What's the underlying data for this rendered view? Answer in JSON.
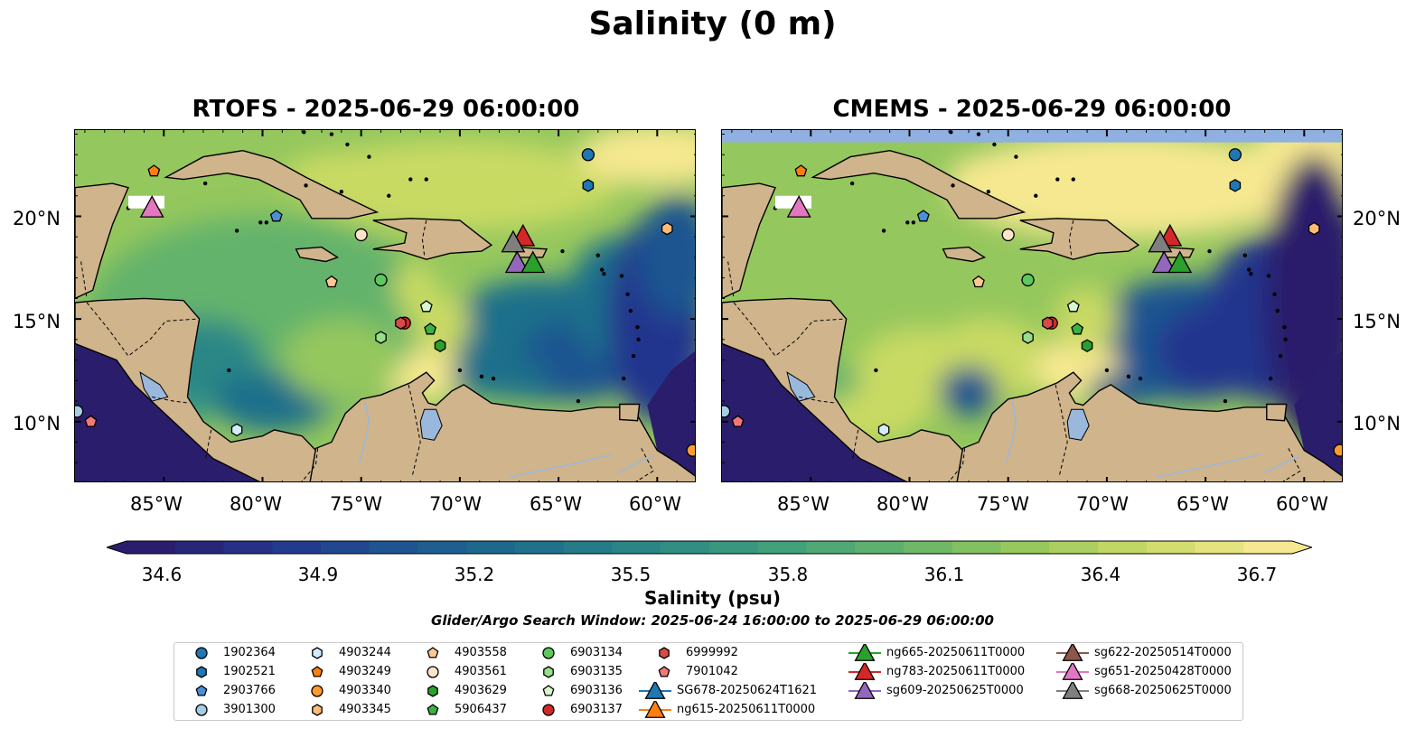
{
  "figure": {
    "suptitle": "Salinity (0 m)",
    "window_text": "Glider/Argo Search Window: 2025-06-24 16:00:00 to 2025-06-29 06:00:00"
  },
  "panels": [
    {
      "title": "RTOFS - 2025-06-29 06:00:00",
      "model": "RTOFS"
    },
    {
      "title": "CMEMS - 2025-06-29 06:00:00",
      "model": "CMEMS"
    }
  ],
  "axes": {
    "lon_labels": [
      "85°W",
      "80°W",
      "75°W",
      "70°W",
      "65°W",
      "60°W"
    ],
    "lat_labels": [
      "20°N",
      "15°N",
      "10°N"
    ],
    "lon_range": [
      -89.5,
      -58.0
    ],
    "lat_range": [
      7.0,
      24.2
    ]
  },
  "colorbar": {
    "label": "Salinity (psu)",
    "ticks": [
      "34.6",
      "34.9",
      "35.2",
      "35.5",
      "35.8",
      "36.1",
      "36.4",
      "36.7"
    ],
    "range": [
      34.6,
      36.7
    ],
    "colormap": "haline",
    "colors": [
      "#2a1d6b",
      "#24358e",
      "#1f5590",
      "#1e6f8b",
      "#2b8786",
      "#3f9e7c",
      "#63b36c",
      "#94c75d",
      "#c9da64",
      "#f6e890"
    ]
  },
  "colors": {
    "land": "#cfb48c",
    "deep_ocean": "#2a1d6b",
    "lakes_rivers": "#9ab8dc"
  },
  "legend": {
    "argo": [
      {
        "id": "1902364",
        "shape": "circle",
        "color": "#1f77b4"
      },
      {
        "id": "1902521",
        "shape": "hexagon",
        "color": "#1f77b4"
      },
      {
        "id": "2903766",
        "shape": "pentagon",
        "color": "#4a90d9"
      },
      {
        "id": "3901300",
        "shape": "circle",
        "color": "#a6cee3"
      },
      {
        "id": "4903244",
        "shape": "hexagon",
        "color": "#d4ecff"
      },
      {
        "id": "4903249",
        "shape": "pentagon",
        "color": "#ff7f0e"
      },
      {
        "id": "4903340",
        "shape": "circle",
        "color": "#ff9a2e"
      },
      {
        "id": "4903345",
        "shape": "hexagon",
        "color": "#ffbb78"
      },
      {
        "id": "4903558",
        "shape": "pentagon",
        "color": "#fcc894"
      },
      {
        "id": "4903561",
        "shape": "circle",
        "color": "#fde3c8"
      },
      {
        "id": "4903629",
        "shape": "hexagon",
        "color": "#2ca02c"
      },
      {
        "id": "5906437",
        "shape": "pentagon",
        "color": "#3cb043"
      },
      {
        "id": "6903134",
        "shape": "circle",
        "color": "#5cc95c"
      },
      {
        "id": "6903135",
        "shape": "hexagon",
        "color": "#98df8a"
      },
      {
        "id": "6903136",
        "shape": "pentagon",
        "color": "#d9f7cf"
      },
      {
        "id": "6903137",
        "shape": "circle",
        "color": "#d62728"
      },
      {
        "id": "6999992",
        "shape": "hexagon",
        "color": "#d84a4a"
      },
      {
        "id": "7901042",
        "shape": "pentagon",
        "color": "#f07878"
      }
    ],
    "gliders": [
      {
        "id": "SG678-20250624T1621",
        "color": "#1f77b4"
      },
      {
        "id": "ng615-20250611T0000",
        "color": "#ff7f0e"
      },
      {
        "id": "ng665-20250611T0000",
        "color": "#2ca02c"
      },
      {
        "id": "ng783-20250611T0000",
        "color": "#d62728"
      },
      {
        "id": "sg609-20250625T0000",
        "color": "#9467bd"
      },
      {
        "id": "sg622-20250514T0000",
        "color": "#8c564b"
      },
      {
        "id": "sg651-20250428T0000",
        "color": "#e377c2"
      },
      {
        "id": "sg668-20250625T0000",
        "color": "#7f7f7f"
      }
    ]
  },
  "observations": {
    "argo_positions": [
      {
        "id": "1902364",
        "lon": -63.5,
        "lat": 23.0
      },
      {
        "id": "1902521",
        "lon": -63.5,
        "lat": 21.5
      },
      {
        "id": "2903766",
        "lon": -79.3,
        "lat": 20.0
      },
      {
        "id": "3901300",
        "lon": -89.4,
        "lat": 10.5
      },
      {
        "id": "4903244",
        "lon": -81.3,
        "lat": 9.6
      },
      {
        "id": "4903249",
        "lon": -85.5,
        "lat": 22.2
      },
      {
        "id": "4903340",
        "lon": -58.2,
        "lat": 8.6
      },
      {
        "id": "4903345",
        "lon": -59.5,
        "lat": 19.4
      },
      {
        "id": "4903558",
        "lon": -76.5,
        "lat": 16.8
      },
      {
        "id": "4903561",
        "lon": -75.0,
        "lat": 19.1
      },
      {
        "id": "4903629",
        "lon": -71.0,
        "lat": 13.7
      },
      {
        "id": "5906437",
        "lon": -71.5,
        "lat": 14.5
      },
      {
        "id": "6903134",
        "lon": -74.0,
        "lat": 16.9
      },
      {
        "id": "6903135",
        "lon": -74.0,
        "lat": 14.1
      },
      {
        "id": "6903136",
        "lon": -71.7,
        "lat": 15.6
      },
      {
        "id": "6903137",
        "lon": -72.8,
        "lat": 14.8
      },
      {
        "id": "6999992",
        "lon": -73.0,
        "lat": 14.8
      },
      {
        "id": "7901042",
        "lon": -88.7,
        "lat": 10.0
      }
    ],
    "glider_positions": [
      {
        "id": "sg651-20250428T0000",
        "lon": -85.6,
        "lat": 20.4
      },
      {
        "id": "ng783-20250611T0000",
        "lon": -66.8,
        "lat": 19.0
      },
      {
        "id": "sg668-20250625T0000",
        "lon": -67.3,
        "lat": 18.7
      },
      {
        "id": "sg609-20250625T0000",
        "lon": -67.1,
        "lat": 17.7
      },
      {
        "id": "ng665-20250611T0000",
        "lon": -66.3,
        "lat": 17.7
      }
    ]
  }
}
